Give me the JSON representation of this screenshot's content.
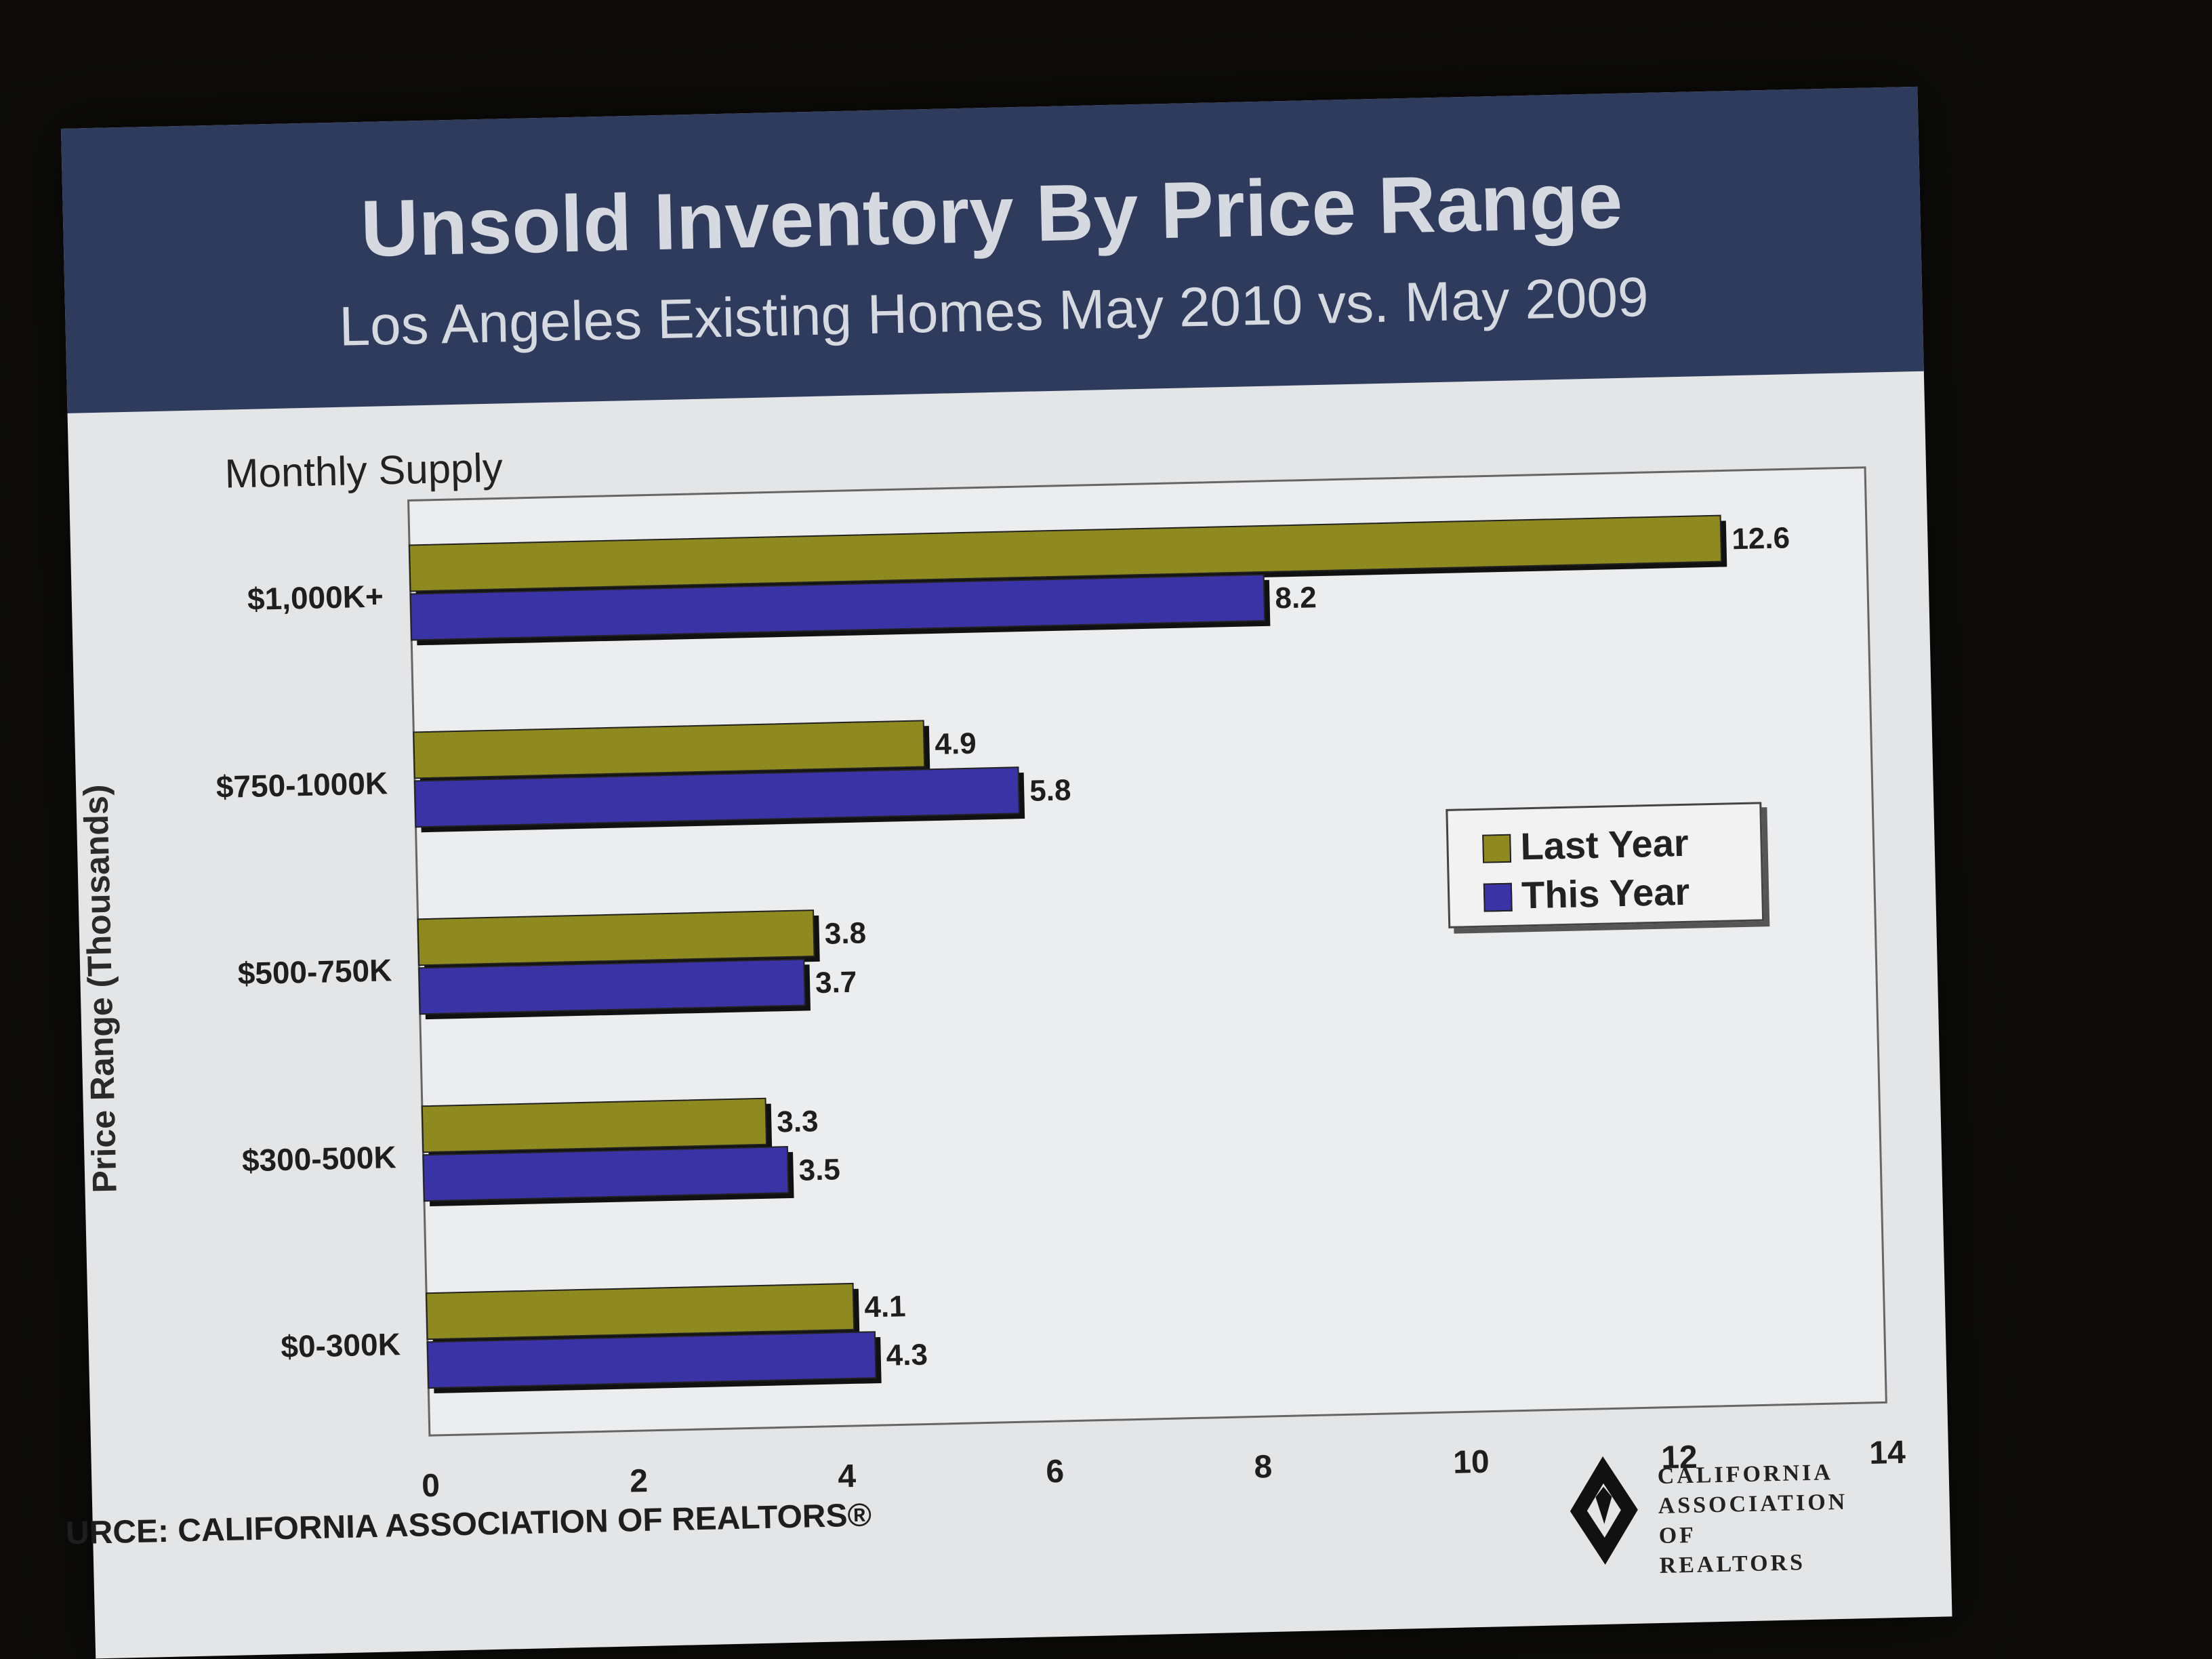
{
  "header": {
    "title": "Unsold Inventory By Price Range",
    "subtitle": "Los Angeles Existing Homes May 2010 vs. May 2009"
  },
  "source": "URCE: CALIFORNIA ASSOCIATION OF REALTORS®",
  "logo": {
    "line1": "CALIFORNIA",
    "line2": "ASSOCIATION",
    "line3": "OF REALTORS"
  },
  "chart_data": {
    "type": "bar",
    "orientation": "horizontal",
    "ylabel_top": "Monthly Supply",
    "ylabel": "Price Range (Thousands)",
    "categories": [
      "$1,000K+",
      "$750-1000K",
      "$500-750K",
      "$300-500K",
      "$0-300K"
    ],
    "series": [
      {
        "name": "Last Year",
        "color": "#8f8a1f",
        "values": [
          12.6,
          4.9,
          3.8,
          3.3,
          4.1
        ],
        "labels": [
          "12.6",
          "4.9",
          "3.8",
          "3.3",
          "4.1"
        ]
      },
      {
        "name": "This Year",
        "color": "#3a33a6",
        "values": [
          8.2,
          5.8,
          3.7,
          3.5,
          4.3
        ],
        "labels": [
          "8.2",
          "5.8",
          "3.7",
          "3.5",
          "4.3"
        ]
      }
    ],
    "xlim": [
      0,
      14
    ],
    "xticks": [
      "0",
      "2",
      "4",
      "6",
      "8",
      "10",
      "12",
      "14"
    ],
    "legend": "right",
    "grid": false
  }
}
